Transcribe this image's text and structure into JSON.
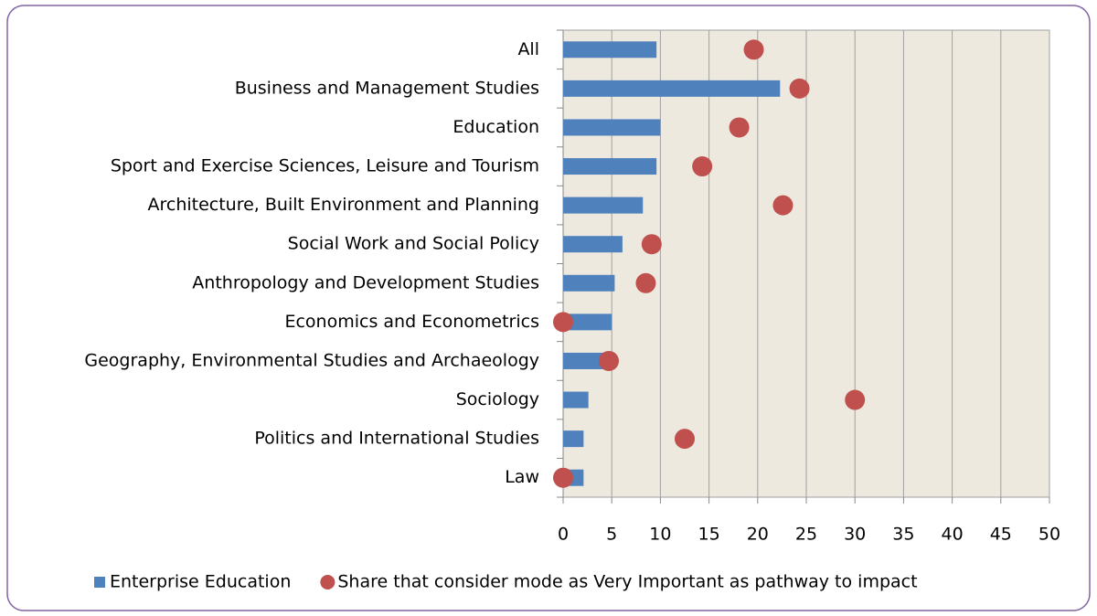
{
  "chart_data": {
    "type": "bar",
    "orientation": "horizontal",
    "categories": [
      "All",
      "Business and Management Studies",
      "Education",
      "Sport and Exercise Sciences, Leisure and Tourism",
      "Architecture, Built Environment and Planning",
      "Social Work and Social Policy",
      "Anthropology and Development Studies",
      "Economics and Econometrics",
      "Geography, Environmental Studies and Archaeology",
      "Sociology",
      "Politics and International Studies",
      "Law"
    ],
    "series": [
      {
        "name": "Enterprise Education",
        "color": "#4f81bd",
        "marker": "bar",
        "values": [
          9.6,
          22.3,
          10,
          9.6,
          8.2,
          6.1,
          5.3,
          5.0,
          4.1,
          2.6,
          2.1,
          2.1
        ]
      },
      {
        "name": "Share that consider mode as Very Important as pathway to impact",
        "color": "#c0504d",
        "marker": "circle",
        "values": [
          19.6,
          24.3,
          18.1,
          14.3,
          22.6,
          9.1,
          8.5,
          0,
          4.7,
          30,
          12.5,
          0
        ]
      }
    ],
    "xlim": [
      0,
      50
    ],
    "xticks": [
      0,
      5,
      10,
      15,
      20,
      25,
      30,
      35,
      40,
      45,
      50
    ],
    "grid": true,
    "legend": "bottom"
  }
}
